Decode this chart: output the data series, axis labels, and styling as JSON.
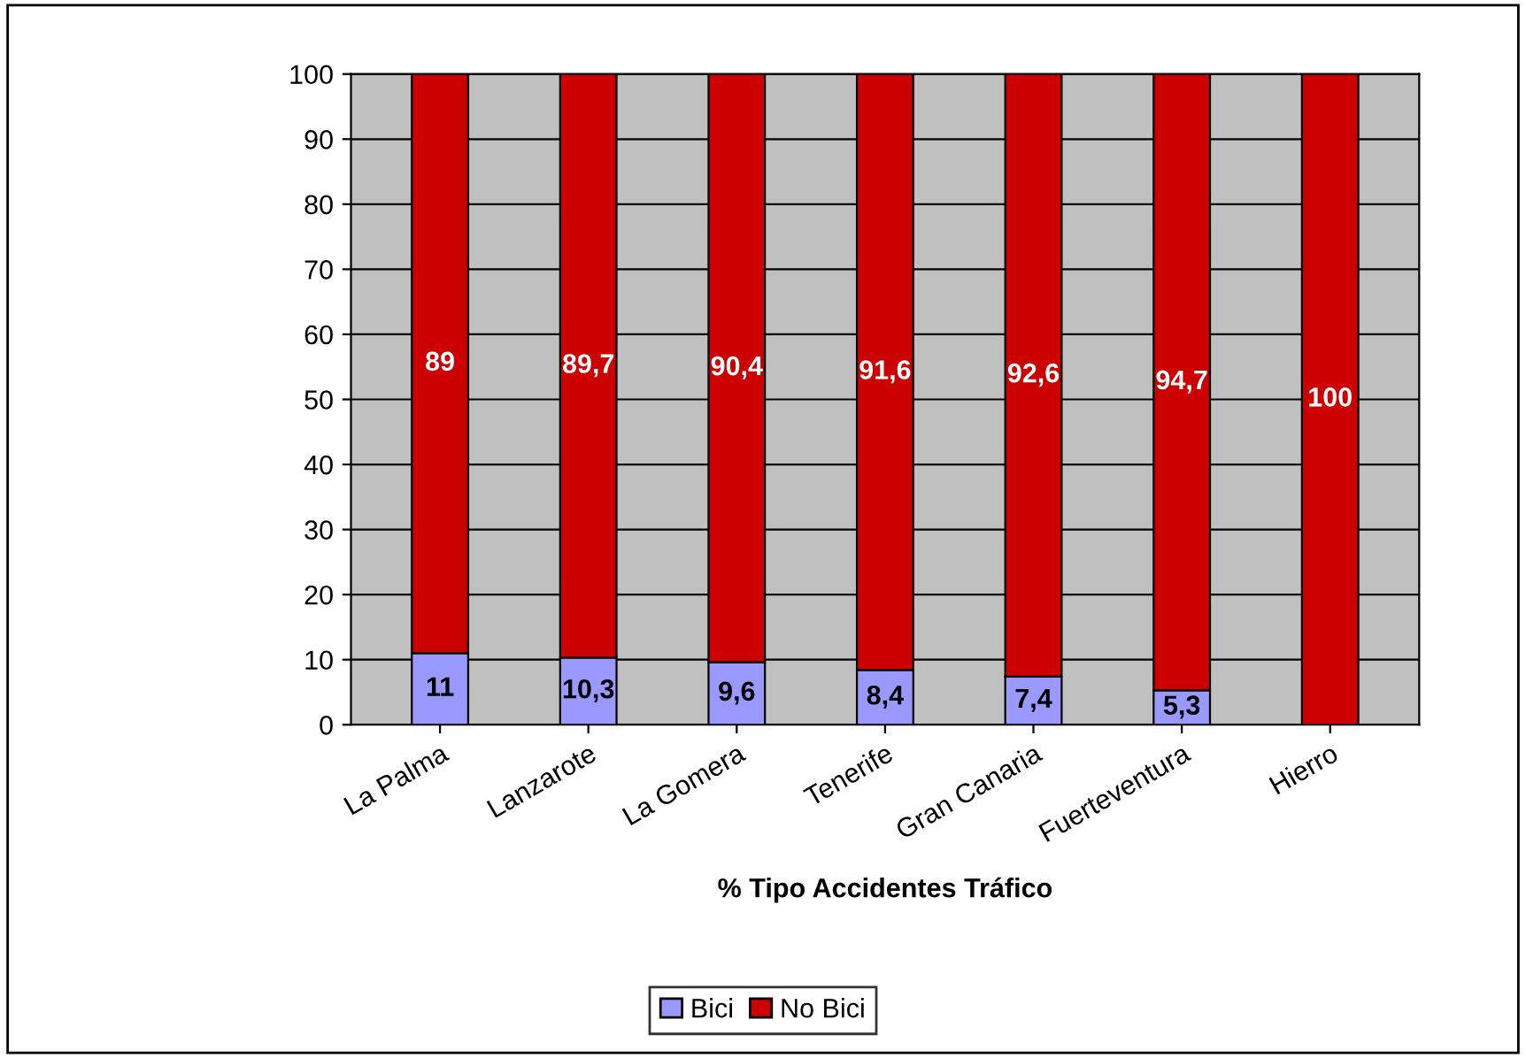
{
  "chart_data": {
    "type": "bar",
    "stacked": true,
    "xlabel": "% Tipo Accidentes Tráfico",
    "categories": [
      "La Palma",
      "Lanzarote",
      "La Gomera",
      "Tenerife",
      "Gran Canaria",
      "Fuerteventura",
      "Hierro"
    ],
    "series": [
      {
        "name": "Bici",
        "color": "#9999ff",
        "values": [
          11,
          10.3,
          9.6,
          8.4,
          7.4,
          5.3,
          0
        ],
        "value_labels": [
          "11",
          "10,3",
          "9,6",
          "8,4",
          "7,4",
          "5,3",
          null
        ]
      },
      {
        "name": "No Bici",
        "color": "#cc0000",
        "values": [
          89,
          89.7,
          90.4,
          91.6,
          92.6,
          94.7,
          100
        ],
        "value_labels": [
          "89",
          "89,7",
          "90,4",
          "91,6",
          "92,6",
          "94,7",
          "100"
        ]
      }
    ],
    "ylim": [
      0,
      100
    ],
    "yticks": [
      0,
      10,
      20,
      30,
      40,
      50,
      60,
      70,
      80,
      90,
      100
    ],
    "grid": "y",
    "legend": "bottom"
  }
}
